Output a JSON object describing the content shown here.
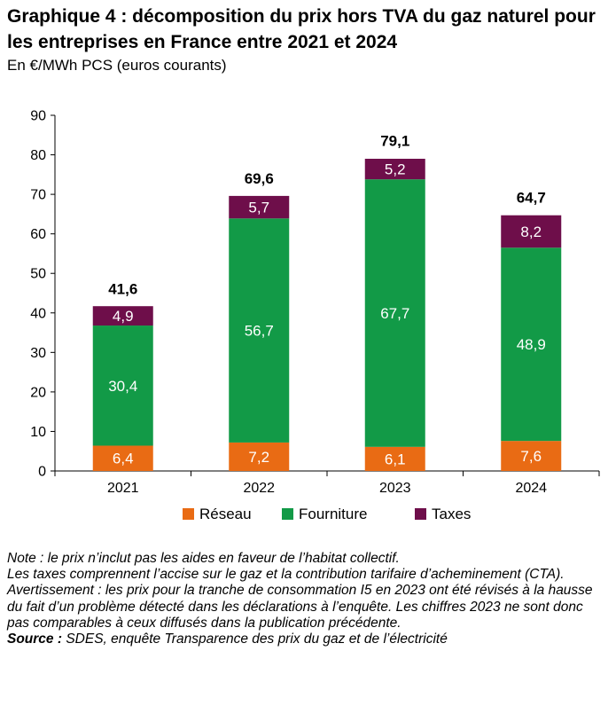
{
  "title": "Graphique 4 : décomposition du prix hors TVA du gaz naturel pour les entreprises en France entre 2021 et 2024",
  "subtitle": "En €/MWh PCS (euros courants)",
  "chart_data": {
    "type": "bar",
    "stacked": true,
    "categories": [
      "2021",
      "2022",
      "2023",
      "2024"
    ],
    "series": [
      {
        "name": "Réseau",
        "color": "#e96b14",
        "values": [
          6.4,
          7.2,
          6.1,
          7.6
        ],
        "labels": [
          "6,4",
          "7,2",
          "6,1",
          "7,6"
        ]
      },
      {
        "name": "Fourniture",
        "color": "#129a47",
        "values": [
          30.4,
          56.7,
          67.7,
          48.9
        ],
        "labels": [
          "30,4",
          "56,7",
          "67,7",
          "48,9"
        ]
      },
      {
        "name": "Taxes",
        "color": "#6e0e4a",
        "values": [
          4.9,
          5.7,
          5.2,
          8.2
        ],
        "labels": [
          "4,9",
          "5,7",
          "5,2",
          "8,2"
        ]
      }
    ],
    "totals": [
      41.6,
      69.6,
      79.1,
      64.7
    ],
    "total_labels": [
      "41,6",
      "69,6",
      "79,1",
      "64,7"
    ],
    "ylim": [
      0,
      90
    ],
    "yticks": [
      0,
      10,
      20,
      30,
      40,
      50,
      60,
      70,
      80,
      90
    ],
    "legend_position": "bottom",
    "grid": false
  },
  "notes": {
    "note": "Note : le prix n’inclut pas les aides en faveur de l’habitat collectif.",
    "taxes": "Les taxes comprennent l’accise sur le gaz et la contribution tarifaire d’acheminement (CTA).",
    "warning": "Avertissement : les prix pour la tranche de consommation I5 en 2023 ont été révisés à la hausse du fait d’un problème détecté dans les déclarations à l’enquête. Les chiffres 2023 ne sont donc pas comparables à ceux diffusés dans la publication précédente.",
    "source_label": "Source :",
    "source_text": " SDES, enquête Transparence des prix du gaz et de l’électricité"
  }
}
